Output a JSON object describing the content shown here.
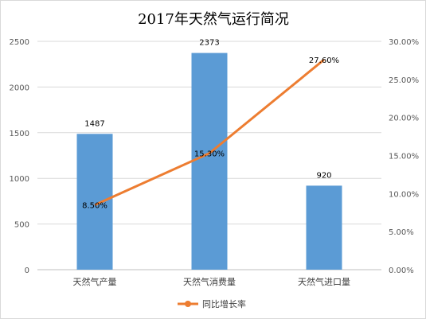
{
  "chart_data": {
    "type": "bar",
    "title": "2017年天然气运行简况",
    "categories": [
      "天然气产量",
      "天然气消费量",
      "天然气进口量"
    ],
    "series": [
      {
        "values": [
          1487,
          2373,
          920
        ],
        "data_labels": [
          "1487",
          "2373",
          "920"
        ],
        "color": "#5b9bd5",
        "axis": "left",
        "type": "bar"
      },
      {
        "name": "同比增长率",
        "values": [
          8.5,
          15.3,
          27.6
        ],
        "data_labels": [
          "8.50%",
          "15.30%",
          "27.60%"
        ],
        "color": "#ed7d31",
        "axis": "right",
        "type": "line"
      }
    ],
    "ylim_left": [
      0,
      2500
    ],
    "yticks_left": [
      "0",
      "500",
      "1000",
      "1500",
      "2000",
      "2500"
    ],
    "ylim_right": [
      0,
      30
    ],
    "yticks_right": [
      "0.00%",
      "5.00%",
      "10.00%",
      "15.00%",
      "20.00%",
      "25.00%",
      "30.00%"
    ],
    "grid": true,
    "legend": "bottom-center",
    "xlabel": "",
    "ylabel": ""
  }
}
